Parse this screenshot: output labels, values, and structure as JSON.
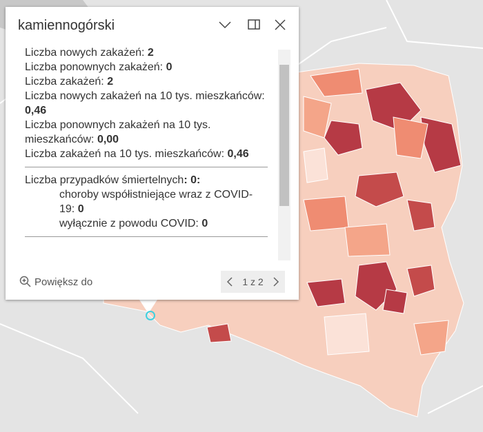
{
  "popup": {
    "title": "kamiennogórski",
    "fields": [
      {
        "label": "Liczba nowych zakażeń:",
        "value": "2"
      },
      {
        "label": "Liczba ponownych zakażeń:",
        "value": "0"
      },
      {
        "label": "Liczba zakażeń:",
        "value": "2"
      },
      {
        "label": "Liczba nowych zakażeń na 10 tys. mieszkańców:",
        "value": "0,46"
      },
      {
        "label": "Liczba ponownych zakażeń na 10 tys. mieszkańców:",
        "value": "0,00"
      },
      {
        "label": "Liczba zakażeń na 10 tys. mieszkańców:",
        "value": "0,46"
      }
    ],
    "deaths": {
      "label": "Liczba przypadków śmiertelnych",
      "value": ": 0:",
      "items": [
        {
          "label": "choroby współistniejące wraz z COVID-19:",
          "value": "0"
        },
        {
          "label": "wyłącznie z powodu COVID:",
          "value": "0"
        }
      ]
    },
    "zoom_label": "Powiększ do",
    "pager": "1 z 2"
  }
}
